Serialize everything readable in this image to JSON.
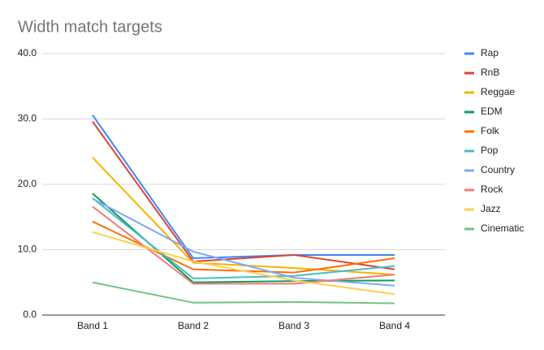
{
  "chart_data": {
    "type": "line",
    "title": "Width match targets",
    "categories": [
      "Band 1",
      "Band 2",
      "Band 3",
      "Band 4"
    ],
    "series": [
      {
        "name": "Rap",
        "color": "#4285f4",
        "values": [
          30.6,
          8.7,
          9.2,
          9.2
        ]
      },
      {
        "name": "RnB",
        "color": "#db4437",
        "values": [
          29.6,
          8.2,
          9.2,
          7.0
        ]
      },
      {
        "name": "Reggae",
        "color": "#f4b400",
        "values": [
          24.1,
          8.0,
          7.2,
          6.2
        ]
      },
      {
        "name": "EDM",
        "color": "#0f9d58",
        "values": [
          18.6,
          5.0,
          5.2,
          5.3
        ]
      },
      {
        "name": "Folk",
        "color": "#ff6d00",
        "values": [
          14.3,
          7.0,
          6.5,
          8.7
        ]
      },
      {
        "name": "Pop",
        "color": "#46bdc6",
        "values": [
          17.9,
          5.6,
          6.0,
          7.5
        ]
      },
      {
        "name": "Country",
        "color": "#7baaf7",
        "values": [
          17.8,
          9.7,
          5.7,
          4.5
        ]
      },
      {
        "name": "Rock",
        "color": "#f07b72",
        "values": [
          16.6,
          4.8,
          4.8,
          6.2
        ]
      },
      {
        "name": "Jazz",
        "color": "#fcd04f",
        "values": [
          12.7,
          8.2,
          5.3,
          3.2
        ]
      },
      {
        "name": "Cinematic",
        "color": "#71c287",
        "values": [
          5.0,
          1.9,
          2.0,
          1.8
        ]
      }
    ],
    "ylim": [
      0,
      40
    ],
    "yticks": [
      {
        "value": 0,
        "label": "0.0"
      },
      {
        "value": 10,
        "label": "10.0"
      },
      {
        "value": 20,
        "label": "20.0"
      },
      {
        "value": 30,
        "label": "30.0"
      },
      {
        "value": 40,
        "label": "40.0"
      }
    ],
    "grid": true,
    "legend": "right"
  }
}
